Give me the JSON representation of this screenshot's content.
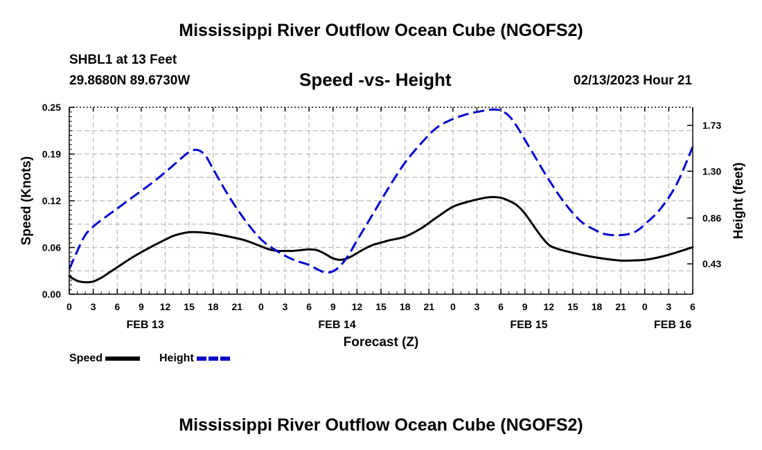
{
  "header": {
    "title": "Mississippi River Outflow Ocean Cube (NGOFS2)",
    "station": "SHBL1 at 13 Feet",
    "coordinates": "29.8680N  89.6730W",
    "subtitle": "Speed -vs- Height",
    "datetime": "02/13/2023 Hour 21"
  },
  "footer": {
    "title": "Mississippi River Outflow Ocean Cube (NGOFS2)"
  },
  "legend": {
    "speed_label": "Speed",
    "height_label": "Height"
  },
  "colors": {
    "speed": "#000000",
    "height": "#0000cc",
    "grid": "#bbbbbb"
  },
  "chart_data": {
    "type": "line",
    "title": "Speed -vs- Height",
    "xlabel": "Forecast (Z)",
    "ylabel": "Speed (Knots)",
    "y2label": "Height (feet)",
    "x_unit": "hours from 02/13 00Z",
    "xlim": [
      0,
      78
    ],
    "ylim": [
      0,
      0.25
    ],
    "y2lim": [
      0.145,
      1.9
    ],
    "x_ticks": [
      0,
      3,
      6,
      9,
      12,
      15,
      18,
      21,
      24,
      27,
      30,
      33,
      36,
      39,
      42,
      45,
      48,
      51,
      54,
      57,
      60,
      63,
      66,
      69,
      72,
      75,
      78
    ],
    "x_tick_labels": [
      "0",
      "3",
      "6",
      "9",
      "12",
      "15",
      "18",
      "21",
      "0",
      "3",
      "6",
      "9",
      "12",
      "15",
      "18",
      "21",
      "0",
      "3",
      "6",
      "9",
      "12",
      "15",
      "18",
      "21",
      "0",
      "3",
      "6"
    ],
    "date_labels": [
      {
        "x": 9.5,
        "label": "FEB 13"
      },
      {
        "x": 33.5,
        "label": "FEB 14"
      },
      {
        "x": 57.5,
        "label": "FEB 15"
      },
      {
        "x": 75.5,
        "label": "FEB 16"
      }
    ],
    "y_tick_labels": [
      "0.00",
      "0.06",
      "0.12",
      "0.19",
      "0.25"
    ],
    "y_ticks": [
      0,
      0.0625,
      0.125,
      0.1875,
      0.25
    ],
    "y2_ticks": [
      0.43,
      0.86,
      1.3,
      1.73
    ],
    "y2_tick_labels": [
      "0.43",
      "0.86",
      "1.30",
      "1.73"
    ],
    "series": [
      {
        "name": "Speed",
        "axis": "left",
        "style": "solid",
        "x": [
          0,
          1,
          2,
          3,
          4,
          5,
          6,
          8,
          10,
          12,
          13,
          14,
          15,
          16,
          18,
          20,
          22,
          24,
          25,
          26,
          27,
          28,
          29,
          30,
          31,
          32,
          33,
          34,
          35,
          36,
          37,
          38,
          39,
          40,
          42,
          44,
          46,
          48,
          50,
          52,
          53,
          54,
          55,
          56,
          57,
          58,
          59,
          60,
          61,
          62,
          64,
          66,
          68,
          69,
          70,
          72,
          74,
          76,
          78
        ],
        "values": [
          0.024,
          0.018,
          0.016,
          0.017,
          0.022,
          0.029,
          0.036,
          0.05,
          0.062,
          0.073,
          0.078,
          0.081,
          0.083,
          0.083,
          0.081,
          0.077,
          0.072,
          0.064,
          0.06,
          0.058,
          0.058,
          0.058,
          0.059,
          0.06,
          0.059,
          0.054,
          0.048,
          0.046,
          0.049,
          0.055,
          0.061,
          0.066,
          0.069,
          0.072,
          0.077,
          0.088,
          0.103,
          0.117,
          0.124,
          0.129,
          0.13,
          0.129,
          0.125,
          0.119,
          0.108,
          0.093,
          0.078,
          0.066,
          0.061,
          0.058,
          0.053,
          0.049,
          0.046,
          0.045,
          0.045,
          0.046,
          0.05,
          0.056,
          0.063
        ]
      },
      {
        "name": "Height",
        "axis": "right",
        "style": "dashed",
        "x": [
          0,
          1,
          2,
          3,
          4,
          6,
          8,
          10,
          12,
          14,
          15,
          16,
          17,
          18,
          20,
          22,
          24,
          26,
          28,
          30,
          31,
          32,
          33,
          34,
          35,
          36,
          38,
          40,
          42,
          44,
          46,
          48,
          50,
          52,
          53,
          54,
          55,
          56,
          58,
          60,
          62,
          64,
          66,
          67,
          68,
          69,
          70,
          71,
          72,
          74,
          76,
          78
        ],
        "values": [
          0.38,
          0.55,
          0.7,
          0.78,
          0.84,
          0.95,
          1.06,
          1.17,
          1.29,
          1.42,
          1.48,
          1.5,
          1.45,
          1.32,
          1.06,
          0.84,
          0.66,
          0.55,
          0.47,
          0.42,
          0.38,
          0.35,
          0.36,
          0.42,
          0.52,
          0.65,
          0.9,
          1.15,
          1.38,
          1.56,
          1.71,
          1.79,
          1.84,
          1.87,
          1.88,
          1.87,
          1.82,
          1.72,
          1.47,
          1.22,
          1.0,
          0.83,
          0.74,
          0.71,
          0.7,
          0.7,
          0.71,
          0.74,
          0.8,
          0.95,
          1.18,
          1.53
        ]
      }
    ]
  }
}
